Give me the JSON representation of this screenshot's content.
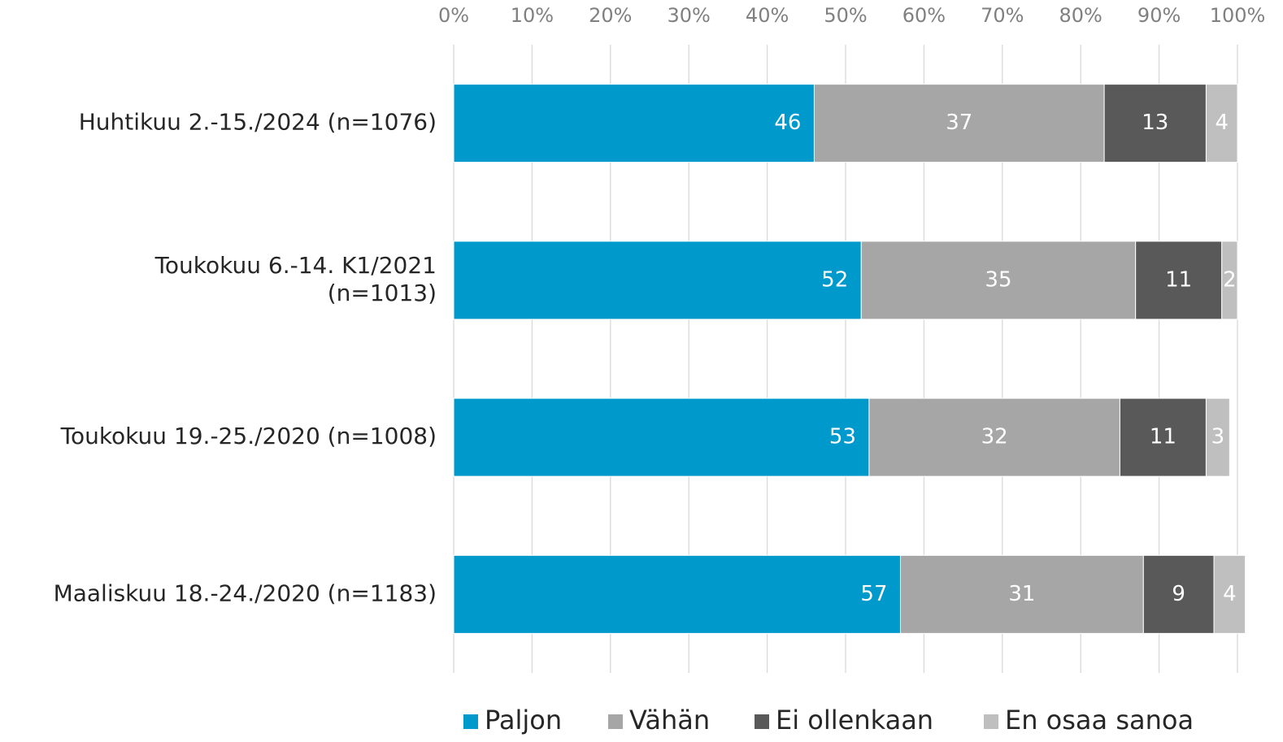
{
  "chart_data": {
    "type": "bar",
    "orientation": "horizontal",
    "stacked": true,
    "categories": [
      "Huhtikuu 2.-15./2024 (n=1076)",
      "Toukokuu 6.-14. K1/2021\n(n=1013)",
      "Toukokuu 19.-25./2020 (n=1008)",
      "Maaliskuu 18.-24./2020 (n=1183)"
    ],
    "series": [
      {
        "name": "Paljon",
        "color": "#0099cc",
        "values": [
          46,
          52,
          53,
          57
        ]
      },
      {
        "name": "Vähän",
        "color": "#a6a6a6",
        "values": [
          37,
          35,
          32,
          31
        ]
      },
      {
        "name": "Ei ollenkaan",
        "color": "#595959",
        "values": [
          13,
          11,
          11,
          9
        ]
      },
      {
        "name": "En osaa sanoa",
        "color": "#bfbfbf",
        "values": [
          4,
          2,
          3,
          4
        ]
      }
    ],
    "xlim": [
      0,
      100
    ],
    "xticks": [
      {
        "value": 0,
        "label": "0%"
      },
      {
        "value": 10,
        "label": "10%"
      },
      {
        "value": 20,
        "label": "20%"
      },
      {
        "value": 30,
        "label": "30%"
      },
      {
        "value": 40,
        "label": "40%"
      },
      {
        "value": 50,
        "label": "50%"
      },
      {
        "value": 60,
        "label": "60%"
      },
      {
        "value": 70,
        "label": "70%"
      },
      {
        "value": 80,
        "label": "80%"
      },
      {
        "value": 90,
        "label": "90%"
      },
      {
        "value": 100,
        "label": "100%"
      }
    ],
    "grid": true,
    "legend": "bottom"
  }
}
